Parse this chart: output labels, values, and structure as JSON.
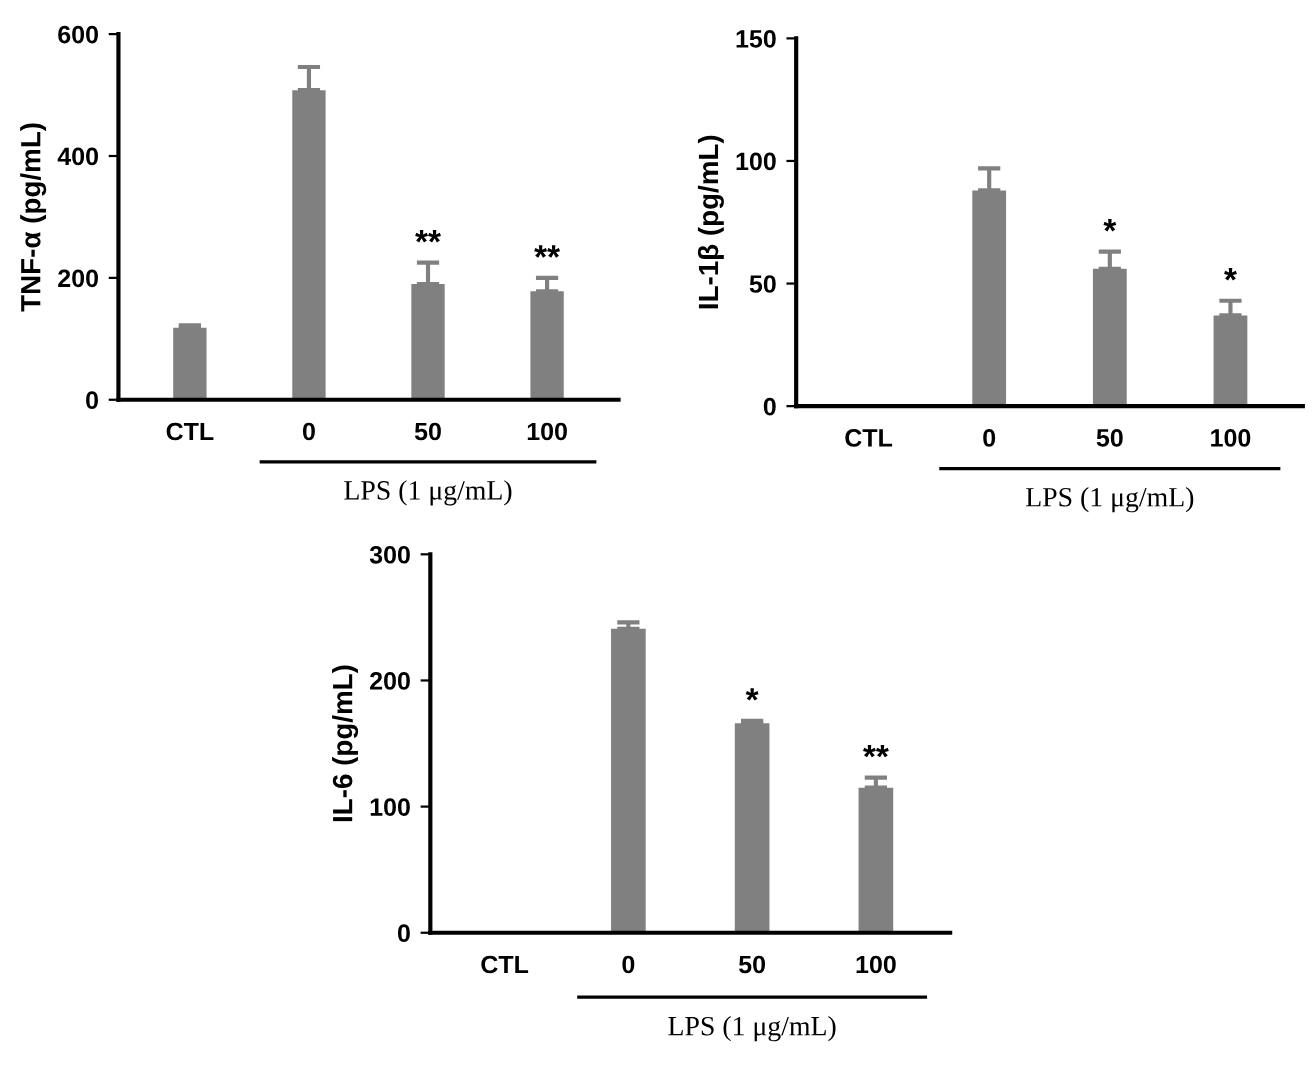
{
  "chart_data": [
    {
      "type": "bar",
      "ylabel": "TNF-α (pg/mL)",
      "xlabel": "LPS (1 μg/mL)",
      "categories": [
        "CTL",
        "0",
        "50",
        "100"
      ],
      "values": [
        118,
        508,
        190,
        178
      ],
      "errors": [
        4,
        38,
        35,
        22
      ],
      "color": "#808080",
      "ylim": [
        0,
        600
      ],
      "yticks": [
        0,
        200,
        400,
        600
      ],
      "grid": false,
      "annotations": [
        {
          "text": "**",
          "x": "50",
          "y": 225
        },
        {
          "text": "**",
          "x": "100",
          "y": 200
        }
      ]
    },
    {
      "type": "bar",
      "ylabel": "IL-1β (pg/mL)",
      "xlabel": "LPS (1 μg/mL)",
      "categories": [
        "CTL",
        "0",
        "50",
        "100"
      ],
      "values": [
        null,
        88,
        56,
        37
      ],
      "errors": [
        null,
        9,
        7,
        6
      ],
      "color": "#808080",
      "ylim": [
        0,
        150
      ],
      "yticks": [
        0,
        50,
        100,
        150
      ],
      "grid": false,
      "annotations": [
        {
          "text": "*",
          "x": "50",
          "y": 63
        },
        {
          "text": "*",
          "x": "100",
          "y": 43
        }
      ]
    },
    {
      "type": "bar",
      "ylabel": "IL-6 (pg/mL)",
      "xlabel": "LPS (1 μg/mL)",
      "categories": [
        "CTL",
        "0",
        "50",
        "100"
      ],
      "values": [
        null,
        241,
        166,
        115
      ],
      "errors": [
        null,
        5,
        2,
        8
      ],
      "color": "#808080",
      "ylim": [
        0,
        300
      ],
      "yticks": [
        0,
        100,
        200,
        300
      ],
      "grid": false,
      "annotations": [
        {
          "text": "*",
          "x": "50",
          "y": 168
        },
        {
          "text": "**",
          "x": "100",
          "y": 123
        }
      ]
    }
  ]
}
